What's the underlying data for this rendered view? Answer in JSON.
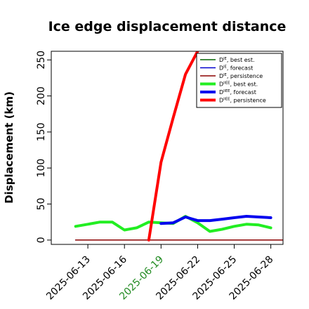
{
  "chart_data": {
    "type": "line",
    "title": "Ice edge displacement distance",
    "xlabel": "",
    "ylabel": "Displacement (km)",
    "x_ticks": [
      {
        "label": "2025-06-13",
        "color": "#000000"
      },
      {
        "label": "2025-06-16",
        "color": "#000000"
      },
      {
        "label": "2025-06-19",
        "color": "#228b22"
      },
      {
        "label": "2025-06-22",
        "color": "#000000"
      },
      {
        "label": "2025-06-25",
        "color": "#000000"
      },
      {
        "label": "2025-06-28",
        "color": "#000000"
      }
    ],
    "y_ticks": [
      "0",
      "50",
      "100",
      "150",
      "200",
      "250"
    ],
    "xlim": [
      "2025-06-10",
      "2025-06-29"
    ],
    "ylim": [
      -6,
      262
    ],
    "grid": false,
    "legend_position": "top-right",
    "series": [
      {
        "legend": {
          "base": "D",
          "sup": "IE",
          "suffix": ", best est."
        },
        "color": "#006400",
        "width": 1.5,
        "x": [
          "2025-06-12",
          "2025-06-29"
        ],
        "y": [
          0,
          0
        ]
      },
      {
        "legend": {
          "base": "D",
          "sup": "IE",
          "suffix": ", forecast"
        },
        "color": "#0000cd",
        "width": 1.5,
        "x": [
          "2025-06-12",
          "2025-06-29"
        ],
        "y": [
          0,
          0
        ]
      },
      {
        "legend": {
          "base": "D",
          "sup": "IE",
          "suffix": ", persistence"
        },
        "color": "#8b0000",
        "width": 1.5,
        "x": [
          "2025-06-12",
          "2025-06-29"
        ],
        "y": [
          0,
          0
        ]
      },
      {
        "legend": {
          "base": "D",
          "sup": "IIEE",
          "suffix": ", best est."
        },
        "color": "#22ee22",
        "width": 4,
        "x": [
          "2025-06-12",
          "2025-06-13",
          "2025-06-14",
          "2025-06-15",
          "2025-06-16",
          "2025-06-17",
          "2025-06-18",
          "2025-06-19",
          "2025-06-20",
          "2025-06-21",
          "2025-06-22",
          "2025-06-23",
          "2025-06-24",
          "2025-06-25",
          "2025-06-26",
          "2025-06-27",
          "2025-06-28"
        ],
        "y": [
          19,
          22,
          25,
          25,
          14,
          17,
          25,
          24,
          23,
          33,
          24,
          12,
          15,
          19,
          22,
          21,
          17
        ]
      },
      {
        "legend": {
          "base": "D",
          "sup": "IIEE",
          "suffix": ", forecast"
        },
        "color": "#0000ee",
        "width": 4,
        "x": [
          "2025-06-19",
          "2025-06-20",
          "2025-06-21",
          "2025-06-22",
          "2025-06-23",
          "2025-06-24",
          "2025-06-25",
          "2025-06-26",
          "2025-06-27",
          "2025-06-28"
        ],
        "y": [
          23,
          24,
          32,
          27,
          27,
          29,
          31,
          33,
          32,
          31
        ]
      },
      {
        "legend": {
          "base": "D",
          "sup": "IIEE",
          "suffix": ", persistence"
        },
        "color": "#ff0000",
        "width": 4,
        "x": [
          "2025-06-18",
          "2025-06-19",
          "2025-06-20",
          "2025-06-21",
          "2025-06-22"
        ],
        "y": [
          0,
          108,
          170,
          230,
          262
        ]
      }
    ]
  }
}
